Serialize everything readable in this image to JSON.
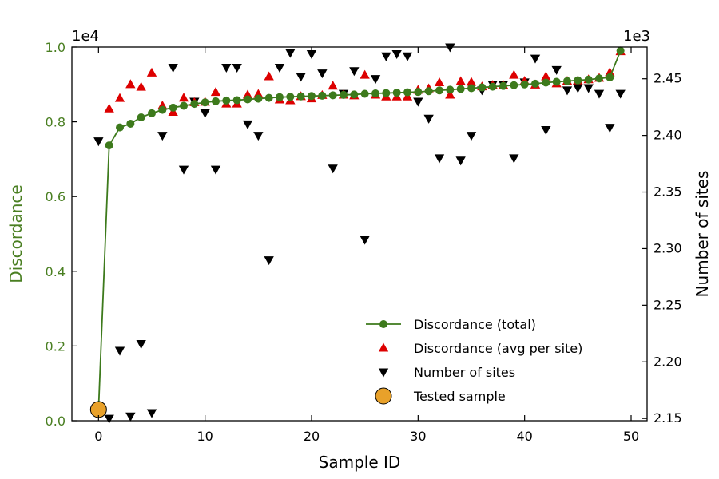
{
  "colors": {
    "discordance_total": "#3d7a1c",
    "discordance_avg": "#dd0000",
    "number_of_sites": "#000000",
    "tested_sample": "#e8a12a",
    "left_axis_text": "#4a7f22",
    "right_axis_text": "#000000"
  },
  "chart_data": {
    "type": "scatter",
    "xlabel": "Sample ID",
    "ylabel_left": "Discordance",
    "ylabel_right": "Number of sites",
    "left_offset_text": "1e4",
    "right_offset_text": "1e3",
    "xlim": [
      -2.5,
      51.5
    ],
    "ylim_left": [
      0.0,
      1.0
    ],
    "ylim_right": [
      2.148,
      2.478
    ],
    "x_ticks": [
      0,
      10,
      20,
      30,
      40,
      50
    ],
    "y_left_ticks": [
      0.0,
      0.2,
      0.4,
      0.6,
      0.8,
      1.0
    ],
    "y_left_tick_labels": [
      "0.0",
      "0.2",
      "0.4",
      "0.6",
      "0.8",
      "1.0"
    ],
    "y_right_ticks": [
      2.15,
      2.2,
      2.25,
      2.3,
      2.35,
      2.4,
      2.45
    ],
    "y_right_tick_labels": [
      "2.15",
      "2.20",
      "2.25",
      "2.30",
      "2.35",
      "2.40",
      "2.45"
    ],
    "legend_position": "lower-right",
    "series": [
      {
        "name": "Discordance (total)",
        "axis": "left",
        "marker": "circle-line",
        "x": [
          0,
          1,
          2,
          3,
          4,
          5,
          6,
          7,
          8,
          9,
          10,
          11,
          12,
          13,
          14,
          15,
          16,
          17,
          18,
          19,
          20,
          21,
          22,
          23,
          24,
          25,
          26,
          27,
          28,
          29,
          30,
          31,
          32,
          33,
          34,
          35,
          36,
          37,
          38,
          39,
          40,
          41,
          42,
          43,
          44,
          45,
          46,
          47,
          48,
          49
        ],
        "y": [
          0.03,
          0.737,
          0.785,
          0.795,
          0.812,
          0.823,
          0.832,
          0.838,
          0.843,
          0.848,
          0.852,
          0.855,
          0.857,
          0.858,
          0.86,
          0.862,
          0.864,
          0.866,
          0.867,
          0.868,
          0.869,
          0.87,
          0.871,
          0.872,
          0.873,
          0.875,
          0.876,
          0.877,
          0.878,
          0.879,
          0.88,
          0.882,
          0.884,
          0.886,
          0.888,
          0.89,
          0.892,
          0.894,
          0.896,
          0.898,
          0.9,
          0.902,
          0.905,
          0.907,
          0.909,
          0.911,
          0.913,
          0.916,
          0.919,
          0.99
        ]
      },
      {
        "name": "Discordance (avg per site)",
        "axis": "left",
        "marker": "triangle-up",
        "x": [
          1,
          2,
          3,
          4,
          5,
          6,
          7,
          8,
          9,
          10,
          11,
          12,
          13,
          14,
          15,
          16,
          17,
          18,
          19,
          20,
          21,
          22,
          23,
          24,
          25,
          26,
          27,
          28,
          29,
          30,
          31,
          32,
          33,
          34,
          35,
          36,
          37,
          38,
          39,
          40,
          41,
          42,
          43,
          44,
          45,
          46,
          47,
          48,
          49
        ],
        "y": [
          0.835,
          0.863,
          0.9,
          0.893,
          0.931,
          0.843,
          0.826,
          0.864,
          0.852,
          0.853,
          0.879,
          0.848,
          0.848,
          0.872,
          0.874,
          0.921,
          0.859,
          0.857,
          0.868,
          0.862,
          0.871,
          0.896,
          0.872,
          0.87,
          0.925,
          0.872,
          0.867,
          0.867,
          0.867,
          0.885,
          0.889,
          0.905,
          0.872,
          0.908,
          0.906,
          0.894,
          0.898,
          0.898,
          0.925,
          0.909,
          0.899,
          0.921,
          0.902,
          0.909,
          0.91,
          0.913,
          0.917,
          0.932,
          0.988
        ]
      },
      {
        "name": "Number of sites",
        "axis": "right",
        "marker": "triangle-down",
        "x": [
          0,
          1,
          2,
          3,
          4,
          5,
          6,
          7,
          8,
          9,
          10,
          11,
          12,
          13,
          14,
          15,
          16,
          17,
          18,
          19,
          20,
          21,
          22,
          23,
          24,
          25,
          26,
          27,
          28,
          29,
          30,
          31,
          32,
          33,
          34,
          35,
          36,
          37,
          38,
          39,
          40,
          41,
          42,
          43,
          44,
          45,
          46,
          47,
          48,
          49
        ],
        "y": [
          2.395,
          2.15,
          2.21,
          2.152,
          2.216,
          2.155,
          2.4,
          2.46,
          2.37,
          2.43,
          2.42,
          2.37,
          2.46,
          2.46,
          2.41,
          2.4,
          2.29,
          2.46,
          2.473,
          2.452,
          2.472,
          2.455,
          2.371,
          2.437,
          2.457,
          2.308,
          2.45,
          2.47,
          2.472,
          2.47,
          2.43,
          2.415,
          2.38,
          2.48,
          2.378,
          2.4,
          2.44,
          2.445,
          2.445,
          2.38,
          2.447,
          2.468,
          2.405,
          2.458,
          2.44,
          2.442,
          2.442,
          2.437,
          2.407,
          2.437
        ]
      },
      {
        "name": "Tested sample",
        "axis": "left",
        "marker": "large-circle",
        "x": [
          0
        ],
        "y": [
          0.03
        ]
      }
    ]
  }
}
